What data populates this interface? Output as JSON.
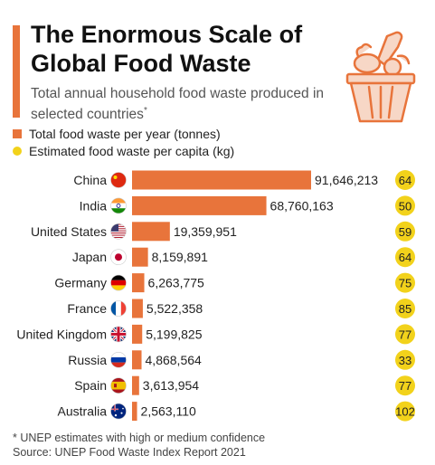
{
  "header": {
    "title": "The Enormous Scale of Global Food Waste",
    "subtitle": "Total annual household food waste produced in selected countries",
    "subtitle_marker": "*"
  },
  "legend": {
    "items": [
      {
        "label": "Total food waste per year (tonnes)",
        "color": "#e8743b",
        "shape": "square"
      },
      {
        "label": "Estimated food waste per capita (kg)",
        "color": "#f2d21b",
        "shape": "circle"
      }
    ]
  },
  "illustration": {
    "icon": "food-bin-icon"
  },
  "chart_data": {
    "type": "bar",
    "orientation": "horizontal",
    "categories": [
      "China",
      "India",
      "United States",
      "Japan",
      "Germany",
      "France",
      "United Kingdom",
      "Russia",
      "Spain",
      "Australia"
    ],
    "series": [
      {
        "values": [
          91646213,
          68760163,
          19359951,
          8159891,
          6263775,
          5522358,
          5199825,
          4868564,
          3613954,
          2563110
        ],
        "value_labels": [
          "91,646,213",
          "68,760,163",
          "19,359,951",
          "8,159,891",
          "6,263,775",
          "5,522,358",
          "5,199,825",
          "4,868,564",
          "3,613,954",
          "2,563,110"
        ],
        "color": "#e8743b"
      },
      {
        "values": [
          64,
          50,
          59,
          64,
          75,
          85,
          77,
          33,
          77,
          102
        ],
        "color": "#f2d21b"
      }
    ],
    "flags": [
      "china-flag-icon",
      "india-flag-icon",
      "usa-flag-icon",
      "japan-flag-icon",
      "germany-flag-icon",
      "france-flag-icon",
      "uk-flag-icon",
      "russia-flag-icon",
      "spain-flag-icon",
      "australia-flag-icon"
    ],
    "grid": false,
    "legend_position": "top-left"
  },
  "footer": {
    "note": "* UNEP estimates with high or medium confidence",
    "source": "Source: UNEP Food Waste Index Report 2021"
  }
}
